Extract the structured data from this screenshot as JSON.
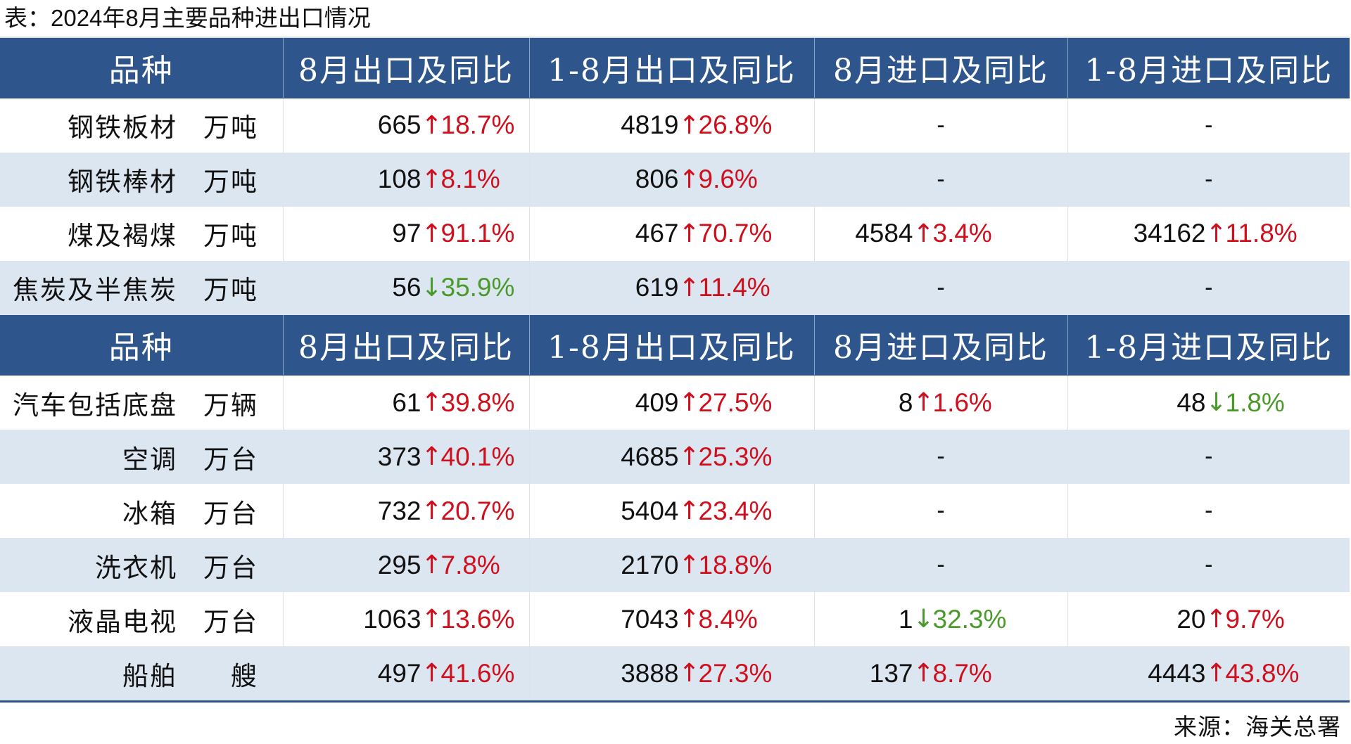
{
  "title": "表：2024年8月主要品种进出口情况",
  "headers": [
    "品种",
    "8月出口及同比",
    "1-8月出口及同比",
    "8月进口及同比",
    "1-8月进口及同比"
  ],
  "section1": [
    {
      "name": "钢铁板材",
      "unit": "万吨",
      "exp_m": {
        "value": "665",
        "dir": "up",
        "arrow": "↑",
        "pct": "18.7%"
      },
      "exp_ytd": {
        "value": "4819",
        "dir": "up",
        "arrow": "↑",
        "pct": "26.8%"
      },
      "imp_m": {
        "dash": "-"
      },
      "imp_ytd": {
        "dash": "-"
      }
    },
    {
      "name": "钢铁棒材",
      "unit": "万吨",
      "exp_m": {
        "value": "108",
        "dir": "up",
        "arrow": "↑",
        "pct": "8.1%"
      },
      "exp_ytd": {
        "value": "806",
        "dir": "up",
        "arrow": "↑",
        "pct": "9.6%"
      },
      "imp_m": {
        "dash": "-"
      },
      "imp_ytd": {
        "dash": "-"
      }
    },
    {
      "name": "煤及褐煤",
      "unit": "万吨",
      "exp_m": {
        "value": "97",
        "dir": "up",
        "arrow": "↑",
        "pct": "91.1%"
      },
      "exp_ytd": {
        "value": "467",
        "dir": "up",
        "arrow": "↑",
        "pct": "70.7%"
      },
      "imp_m": {
        "value": "4584",
        "dir": "up",
        "arrow": "↑",
        "pct": "3.4%"
      },
      "imp_ytd": {
        "value": "34162",
        "dir": "up",
        "arrow": "↑",
        "pct": "11.8%"
      }
    },
    {
      "name": "焦炭及半焦炭",
      "unit": "万吨",
      "exp_m": {
        "value": "56",
        "dir": "down",
        "arrow": "↓",
        "pct": "35.9%"
      },
      "exp_ytd": {
        "value": "619",
        "dir": "up",
        "arrow": "↑",
        "pct": "11.4%"
      },
      "imp_m": {
        "dash": "-"
      },
      "imp_ytd": {
        "dash": "-"
      }
    }
  ],
  "section2": [
    {
      "name": "汽车包括底盘",
      "unit": "万辆",
      "exp_m": {
        "value": "61",
        "dir": "up",
        "arrow": "↑",
        "pct": "39.8%"
      },
      "exp_ytd": {
        "value": "409",
        "dir": "up",
        "arrow": "↑",
        "pct": "27.5%"
      },
      "imp_m": {
        "value": "8",
        "dir": "up",
        "arrow": "↑",
        "pct": "1.6%"
      },
      "imp_ytd": {
        "value": "48",
        "dir": "down",
        "arrow": "↓",
        "pct": "1.8%"
      }
    },
    {
      "name": "空调",
      "unit": "万台",
      "exp_m": {
        "value": "373",
        "dir": "up",
        "arrow": "↑",
        "pct": "40.1%"
      },
      "exp_ytd": {
        "value": "4685",
        "dir": "up",
        "arrow": "↑",
        "pct": "25.3%"
      },
      "imp_m": {
        "dash": "-"
      },
      "imp_ytd": {
        "dash": "-"
      }
    },
    {
      "name": "冰箱",
      "unit": "万台",
      "exp_m": {
        "value": "732",
        "dir": "up",
        "arrow": "↑",
        "pct": "20.7%"
      },
      "exp_ytd": {
        "value": "5404",
        "dir": "up",
        "arrow": "↑",
        "pct": "23.4%"
      },
      "imp_m": {
        "dash": "-"
      },
      "imp_ytd": {
        "dash": "-"
      }
    },
    {
      "name": "洗衣机",
      "unit": "万台",
      "exp_m": {
        "value": "295",
        "dir": "up",
        "arrow": "↑",
        "pct": "7.8%"
      },
      "exp_ytd": {
        "value": "2170",
        "dir": "up",
        "arrow": "↑",
        "pct": "18.8%"
      },
      "imp_m": {
        "dash": "-"
      },
      "imp_ytd": {
        "dash": "-"
      }
    },
    {
      "name": "液晶电视",
      "unit": "万台",
      "exp_m": {
        "value": "1063",
        "dir": "up",
        "arrow": "↑",
        "pct": "13.6%"
      },
      "exp_ytd": {
        "value": "7043",
        "dir": "up",
        "arrow": "↑",
        "pct": "8.4%"
      },
      "imp_m": {
        "value": "1",
        "dir": "down",
        "arrow": "↓",
        "pct": "32.3%"
      },
      "imp_ytd": {
        "value": "20",
        "dir": "up",
        "arrow": "↑",
        "pct": "9.7%"
      }
    },
    {
      "name": "船舶",
      "unit": "艘",
      "exp_m": {
        "value": "497",
        "dir": "up",
        "arrow": "↑",
        "pct": "41.6%"
      },
      "exp_ytd": {
        "value": "3888",
        "dir": "up",
        "arrow": "↑",
        "pct": "27.3%"
      },
      "imp_m": {
        "value": "137",
        "dir": "up",
        "arrow": "↑",
        "pct": "8.7%"
      },
      "imp_ytd": {
        "value": "4443",
        "dir": "up",
        "arrow": "↑",
        "pct": "43.8%"
      }
    }
  ],
  "source": "来源：海关总署",
  "colors": {
    "header_bg": "#2e568c",
    "stripe": "#dce6f1",
    "up": "#d00f1d",
    "down": "#4a9a2a"
  }
}
